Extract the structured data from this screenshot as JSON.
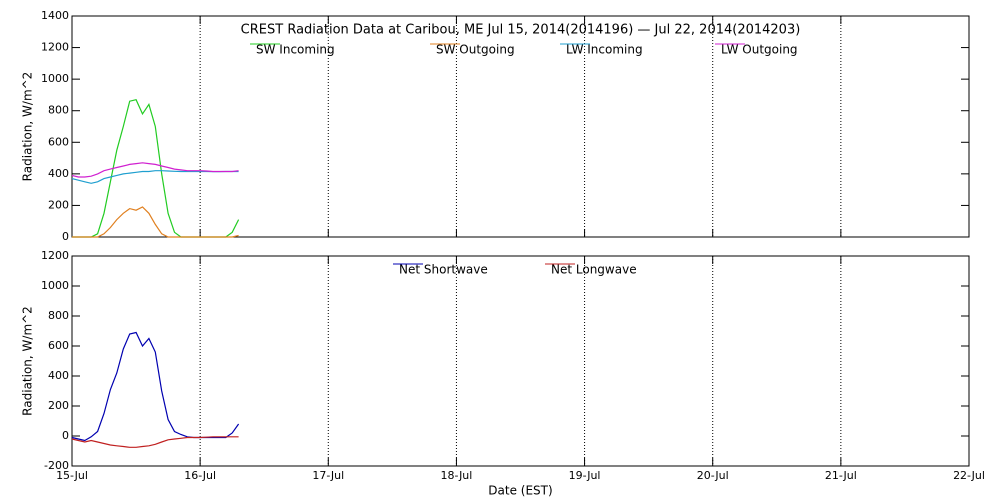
{
  "chart_data": [
    {
      "type": "line",
      "title": "CREST Radiation Data at Caribou, ME   Jul 15, 2014(2014196) — Jul 22, 2014(2014203)",
      "ylabel": "Radiation, W/m^2",
      "x": [
        0,
        0.05,
        0.1,
        0.15,
        0.2,
        0.25,
        0.3,
        0.35,
        0.4,
        0.45,
        0.5,
        0.55,
        0.6,
        0.65,
        0.7,
        0.75,
        0.8,
        0.85,
        0.9,
        0.95,
        1,
        1.05,
        1.1,
        1.15,
        1.2,
        1.25,
        1.3
      ],
      "xlim": [
        0,
        7
      ],
      "xticks": [
        {
          "value": 0,
          "label": "15-Jul"
        },
        {
          "value": 1,
          "label": "16-Jul"
        },
        {
          "value": 2,
          "label": "17-Jul"
        },
        {
          "value": 3,
          "label": "18-Jul"
        },
        {
          "value": 4,
          "label": "19-Jul"
        },
        {
          "value": 5,
          "label": "20-Jul"
        },
        {
          "value": 6,
          "label": "21-Jul"
        },
        {
          "value": 7,
          "label": "22-Jul"
        }
      ],
      "ylim": [
        0,
        1400
      ],
      "yticks": [
        0,
        200,
        400,
        600,
        800,
        1000,
        1200,
        1400
      ],
      "grid": true,
      "series": [
        {
          "name": "SW Incoming",
          "color": "#22cc22",
          "values": [
            0,
            0,
            0,
            0,
            20,
            150,
            350,
            550,
            700,
            860,
            870,
            780,
            840,
            700,
            400,
            150,
            30,
            0,
            0,
            0,
            0,
            0,
            0,
            0,
            0,
            30,
            110
          ]
        },
        {
          "name": "SW Outgoing",
          "color": "#e08020",
          "values": [
            0,
            0,
            0,
            0,
            0,
            20,
            60,
            110,
            150,
            180,
            170,
            190,
            150,
            80,
            20,
            0,
            0,
            0,
            0,
            0,
            0,
            0,
            0,
            0,
            0,
            0,
            10
          ]
        },
        {
          "name": "LW Incoming",
          "color": "#1f9fcf",
          "values": [
            370,
            360,
            350,
            340,
            350,
            370,
            380,
            390,
            400,
            405,
            410,
            415,
            415,
            420,
            420,
            418,
            416,
            415,
            415,
            415,
            415,
            415,
            414,
            414,
            415,
            415,
            415
          ]
        },
        {
          "name": "LW Outgoing",
          "color": "#d020d0",
          "values": [
            390,
            380,
            380,
            385,
            400,
            420,
            430,
            440,
            450,
            460,
            465,
            470,
            465,
            460,
            450,
            440,
            430,
            425,
            420,
            420,
            420,
            418,
            415,
            415,
            415,
            415,
            420
          ]
        }
      ]
    },
    {
      "type": "line",
      "ylabel": "Radiation, W/m^2",
      "xlabel": "Date (EST)",
      "x": [
        0,
        0.05,
        0.1,
        0.15,
        0.2,
        0.25,
        0.3,
        0.35,
        0.4,
        0.45,
        0.5,
        0.55,
        0.6,
        0.65,
        0.7,
        0.75,
        0.8,
        0.85,
        0.9,
        0.95,
        1,
        1.05,
        1.1,
        1.15,
        1.2,
        1.25,
        1.3
      ],
      "xlim": [
        0,
        7
      ],
      "xticks": [
        {
          "value": 0,
          "label": "15-Jul"
        },
        {
          "value": 1,
          "label": "16-Jul"
        },
        {
          "value": 2,
          "label": "17-Jul"
        },
        {
          "value": 3,
          "label": "18-Jul"
        },
        {
          "value": 4,
          "label": "19-Jul"
        },
        {
          "value": 5,
          "label": "20-Jul"
        },
        {
          "value": 6,
          "label": "21-Jul"
        },
        {
          "value": 7,
          "label": "22-Jul"
        }
      ],
      "ylim": [
        -200,
        1200
      ],
      "yticks": [
        -200,
        0,
        200,
        400,
        600,
        800,
        1000,
        1200
      ],
      "grid": true,
      "series": [
        {
          "name": "Net Shortwave",
          "color": "#0000b0",
          "values": [
            -10,
            -20,
            -30,
            -5,
            30,
            150,
            310,
            420,
            580,
            680,
            690,
            600,
            650,
            560,
            300,
            110,
            30,
            10,
            -5,
            -10,
            -10,
            -10,
            -10,
            -10,
            -10,
            20,
            80
          ]
        },
        {
          "name": "Net Longwave",
          "color": "#c02020",
          "values": [
            -20,
            -30,
            -40,
            -30,
            -40,
            -50,
            -60,
            -65,
            -70,
            -75,
            -75,
            -70,
            -65,
            -55,
            -40,
            -25,
            -20,
            -15,
            -10,
            -10,
            -10,
            -8,
            -5,
            -5,
            -5,
            -5,
            -5
          ]
        }
      ]
    }
  ]
}
